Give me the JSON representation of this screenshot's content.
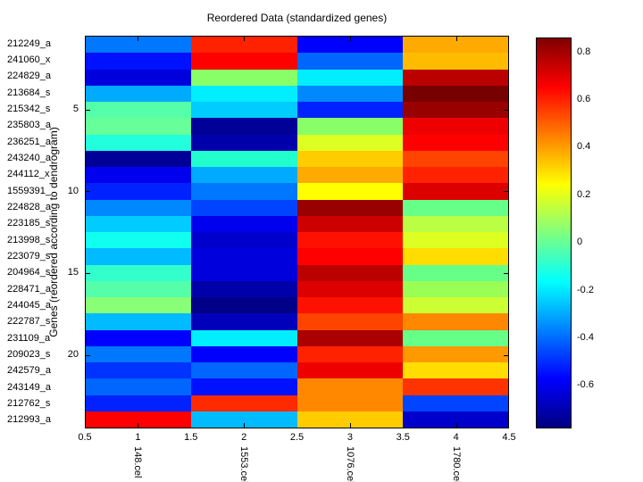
{
  "figure": {
    "title": "Reordered Data (standardized genes)",
    "y_axis_label": "Genes (reordered according to dendrogram)",
    "background_color": "#ffffff"
  },
  "chart_data": {
    "type": "heatmap",
    "title": "Reordered Data (standardized genes)",
    "ylabel": "Genes (reordered according to dendrogram)",
    "colormap": "jet",
    "clim": [
      -0.78,
      0.86
    ],
    "columns": [
      "148.cel",
      "1553.cel",
      "1076.cel",
      "1780.cel"
    ],
    "rows": [
      "212249_a",
      "241060_x",
      "224829_a",
      "213684_s",
      "215342_s",
      "235803_a",
      "236251_a",
      "243240_a",
      "244112_x",
      "1559391_",
      "224828_a",
      "223185_s",
      "213998_s",
      "223079_s",
      "204964_s",
      "228471_a",
      "244045_a",
      "222787_s",
      "231109_a",
      "209023_s",
      "242579_a",
      "243149_a",
      "212762_s",
      "212993_a"
    ],
    "x_tick_labels": [
      "0.5",
      "1",
      "1.5",
      "2",
      "2.5",
      "3",
      "3.5",
      "4",
      "4.5"
    ],
    "y_tick_labels": [
      "5",
      "10",
      "15",
      "20"
    ],
    "y_tick_rows": [
      5,
      10,
      15,
      20
    ],
    "colorbar_ticks": [
      0.8,
      0.6,
      0.4,
      0.2,
      0,
      -0.2,
      -0.4,
      -0.6
    ],
    "values": [
      [
        -0.38,
        0.6,
        -0.57,
        0.38
      ],
      [
        -0.55,
        0.65,
        -0.41,
        0.36
      ],
      [
        -0.63,
        0.06,
        -0.19,
        0.77
      ],
      [
        -0.3,
        -0.19,
        -0.36,
        0.86
      ],
      [
        -0.04,
        -0.25,
        -0.52,
        0.82
      ],
      [
        0.0,
        -0.74,
        0.06,
        0.68
      ],
      [
        -0.11,
        -0.71,
        0.19,
        0.65
      ],
      [
        -0.74,
        -0.1,
        0.33,
        0.54
      ],
      [
        -0.6,
        -0.3,
        0.38,
        0.6
      ],
      [
        -0.52,
        -0.38,
        0.25,
        0.71
      ],
      [
        -0.36,
        -0.46,
        0.82,
        0.01
      ],
      [
        -0.25,
        -0.6,
        0.74,
        0.14
      ],
      [
        -0.14,
        -0.66,
        0.63,
        0.19
      ],
      [
        -0.27,
        -0.63,
        0.65,
        0.3
      ],
      [
        -0.08,
        -0.63,
        0.77,
        0.01
      ],
      [
        -0.03,
        -0.71,
        0.71,
        0.1
      ],
      [
        0.05,
        -0.77,
        0.63,
        0.16
      ],
      [
        -0.27,
        -0.69,
        0.54,
        0.44
      ],
      [
        -0.57,
        -0.19,
        0.79,
        0.01
      ],
      [
        -0.38,
        -0.57,
        0.6,
        0.41
      ],
      [
        -0.49,
        -0.41,
        0.68,
        0.3
      ],
      [
        -0.41,
        -0.55,
        0.44,
        0.57
      ],
      [
        -0.52,
        0.59,
        0.44,
        -0.46
      ],
      [
        0.65,
        -0.27,
        0.33,
        -0.66
      ]
    ],
    "cell_colors": [
      [
        "#0077ff",
        "#ff2200",
        "#0000ff",
        "#ffaa00"
      ],
      [
        "#0011ff",
        "#ff0000",
        "#0066ff",
        "#ffbb00"
      ],
      [
        "#0000dd",
        "#88ff66",
        "#00eeff",
        "#bb0000"
      ],
      [
        "#00aaff",
        "#00eeff",
        "#0088ff",
        "#770000"
      ],
      [
        "#55ffaa",
        "#00ccff",
        "#0022ff",
        "#990000"
      ],
      [
        "#66ff99",
        "#000099",
        "#88ff66",
        "#ee0000"
      ],
      [
        "#22ffdd",
        "#0000aa",
        "#ddff22",
        "#ff0000"
      ],
      [
        "#000099",
        "#22ffcc",
        "#ffcc00",
        "#ff4400"
      ],
      [
        "#0000ee",
        "#00aaff",
        "#ffaa00",
        "#ff2200"
      ],
      [
        "#0022ff",
        "#0077ff",
        "#ffff00",
        "#dd0000"
      ],
      [
        "#0088ff",
        "#0044ff",
        "#990000",
        "#66ff88"
      ],
      [
        "#00ccff",
        "#0000ee",
        "#cc0000",
        "#bbff44"
      ],
      [
        "#11ffee",
        "#0000cc",
        "#ff1100",
        "#ddff22"
      ],
      [
        "#00bbff",
        "#0000dd",
        "#ff0000",
        "#ffdd00"
      ],
      [
        "#33ffcc",
        "#0000dd",
        "#bb0000",
        "#66ff88"
      ],
      [
        "#55ffaa",
        "#0000aa",
        "#dd0000",
        "#99ff55"
      ],
      [
        "#88ff77",
        "#000088",
        "#ff1100",
        "#ccff33"
      ],
      [
        "#00bbff",
        "#0000bb",
        "#ff4400",
        "#ff8800"
      ],
      [
        "#0000ff",
        "#00eeff",
        "#aa0000",
        "#66ff88"
      ],
      [
        "#0077ff",
        "#0000ff",
        "#ff2200",
        "#ff9900"
      ],
      [
        "#0033ff",
        "#0066ff",
        "#ee0000",
        "#ffdd00"
      ],
      [
        "#0066ff",
        "#0011ff",
        "#ff8800",
        "#ff3300"
      ],
      [
        "#0022ff",
        "#ff2a00",
        "#ff8800",
        "#0044ff"
      ],
      [
        "#ff0000",
        "#00bbff",
        "#ffcc00",
        "#0000cc"
      ]
    ]
  }
}
